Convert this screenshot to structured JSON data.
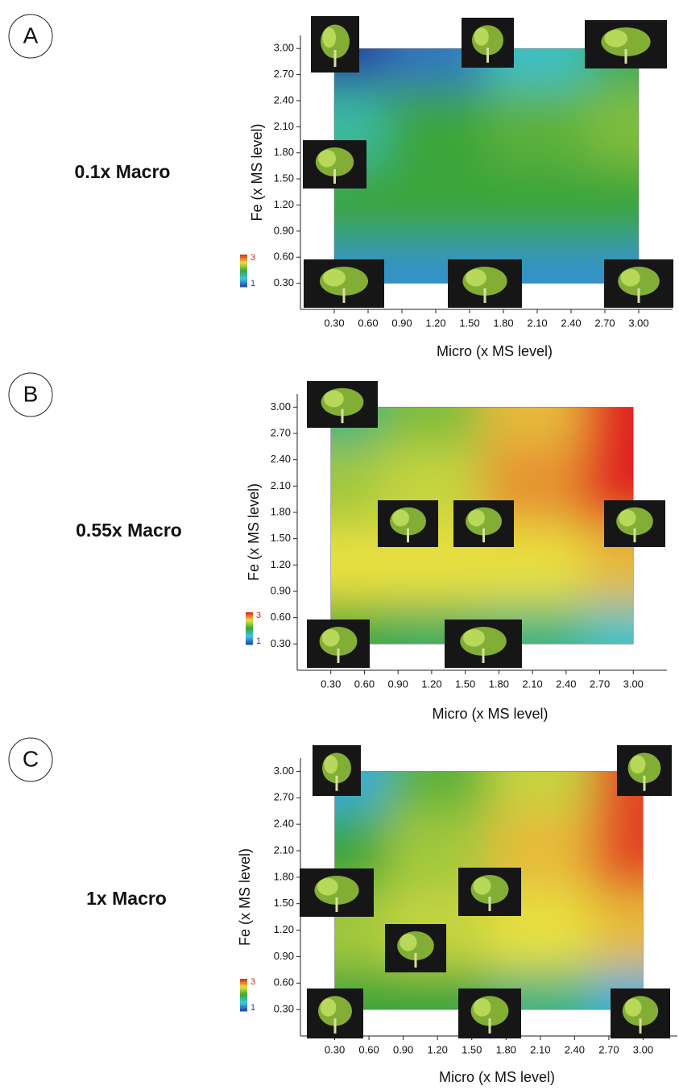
{
  "chart_data": [
    {
      "type": "heatmap",
      "panel_label": "A",
      "title": "0.1x Macro",
      "xlabel": "Micro (x MS level)",
      "ylabel": "Fe (x MS level)",
      "xlim": [
        0,
        3.3
      ],
      "ylim": [
        0,
        3.15
      ],
      "xticks": [
        {
          "value": 0.3,
          "label": "0.30"
        },
        {
          "value": 0.6,
          "label": "0.60"
        },
        {
          "value": 0.9,
          "label": "0.90"
        },
        {
          "value": 1.2,
          "label": "1.20"
        },
        {
          "value": 1.5,
          "label": "1.50"
        },
        {
          "value": 1.8,
          "label": "1.80"
        },
        {
          "value": 2.1,
          "label": "2.10"
        },
        {
          "value": 2.4,
          "label": "2.40"
        },
        {
          "value": 2.7,
          "label": "2.70"
        },
        {
          "value": 3.0,
          "label": "3.00"
        }
      ],
      "yticks": [
        {
          "value": 0.3,
          "label": "0.30"
        },
        {
          "value": 0.6,
          "label": "0.60"
        },
        {
          "value": 0.9,
          "label": "0.90"
        },
        {
          "value": 1.2,
          "label": "1.20"
        },
        {
          "value": 1.5,
          "label": "1.50"
        },
        {
          "value": 1.8,
          "label": "1.80"
        },
        {
          "value": 2.1,
          "label": "2.10"
        },
        {
          "value": 2.4,
          "label": "2.40"
        },
        {
          "value": 2.7,
          "label": "2.70"
        },
        {
          "value": 3.0,
          "label": "3.00"
        }
      ],
      "z_x": [
        0.3,
        1.2,
        2.1,
        3.0
      ],
      "z_y": [
        3.0,
        2.1,
        1.2,
        0.3
      ],
      "z": [
        [
          1.0,
          1.2,
          1.6,
          1.9
        ],
        [
          1.7,
          2.0,
          2.1,
          2.2
        ],
        [
          2.0,
          2.0,
          2.0,
          2.0
        ],
        [
          1.3,
          1.3,
          1.3,
          1.3
        ]
      ],
      "zlim": [
        1,
        3
      ],
      "colorbar_ticks": [
        1,
        3
      ]
    },
    {
      "type": "heatmap",
      "panel_label": "B",
      "title": "0.55x Macro",
      "xlabel": "Micro (x MS level)",
      "ylabel": "Fe (x MS level)",
      "xlim": [
        0,
        3.3
      ],
      "ylim": [
        0,
        3.15
      ],
      "xticks": [
        {
          "value": 0.3,
          "label": "0.30"
        },
        {
          "value": 0.6,
          "label": "0.60"
        },
        {
          "value": 0.9,
          "label": "0.90"
        },
        {
          "value": 1.2,
          "label": "1.20"
        },
        {
          "value": 1.5,
          "label": "1.50"
        },
        {
          "value": 1.8,
          "label": "1.80"
        },
        {
          "value": 2.1,
          "label": "2.10"
        },
        {
          "value": 2.4,
          "label": "2.40"
        },
        {
          "value": 2.7,
          "label": "2.70"
        },
        {
          "value": 3.0,
          "label": "3.00"
        }
      ],
      "yticks": [
        {
          "value": 0.3,
          "label": "0.30"
        },
        {
          "value": 0.6,
          "label": "0.60"
        },
        {
          "value": 0.9,
          "label": "0.90"
        },
        {
          "value": 1.2,
          "label": "1.20"
        },
        {
          "value": 1.5,
          "label": "1.50"
        },
        {
          "value": 1.8,
          "label": "1.80"
        },
        {
          "value": 2.1,
          "label": "2.10"
        },
        {
          "value": 2.4,
          "label": "2.40"
        },
        {
          "value": 2.7,
          "label": "2.70"
        },
        {
          "value": 3.0,
          "label": "3.00"
        }
      ],
      "z_x": [
        0.3,
        1.2,
        2.1,
        3.0
      ],
      "z_y": [
        3.0,
        2.1,
        1.2,
        0.3
      ],
      "z": [
        [
          1.8,
          2.2,
          2.6,
          3.0
        ],
        [
          2.3,
          2.4,
          2.7,
          3.0
        ],
        [
          2.5,
          2.5,
          2.5,
          2.6
        ],
        [
          2.0,
          1.9,
          1.8,
          1.6
        ]
      ],
      "zlim": [
        1,
        3
      ],
      "colorbar_ticks": [
        1,
        3
      ]
    },
    {
      "type": "heatmap",
      "panel_label": "C",
      "title": "1x Macro",
      "xlabel": "Micro (x MS level)",
      "ylabel": "Fe (x MS level)",
      "xlim": [
        0,
        3.3
      ],
      "ylim": [
        0,
        3.15
      ],
      "xticks": [
        {
          "value": 0.3,
          "label": "0.30"
        },
        {
          "value": 0.6,
          "label": "0.60"
        },
        {
          "value": 0.9,
          "label": "0.90"
        },
        {
          "value": 1.2,
          "label": "1.20"
        },
        {
          "value": 1.5,
          "label": "1.50"
        },
        {
          "value": 1.8,
          "label": "1.80"
        },
        {
          "value": 2.1,
          "label": "2.10"
        },
        {
          "value": 2.4,
          "label": "2.40"
        },
        {
          "value": 2.7,
          "label": "2.70"
        },
        {
          "value": 3.0,
          "label": "3.00"
        }
      ],
      "yticks": [
        {
          "value": 0.3,
          "label": "0.30"
        },
        {
          "value": 0.6,
          "label": "0.60"
        },
        {
          "value": 0.9,
          "label": "0.90"
        },
        {
          "value": 1.2,
          "label": "1.20"
        },
        {
          "value": 1.5,
          "label": "1.50"
        },
        {
          "value": 1.8,
          "label": "1.80"
        },
        {
          "value": 2.1,
          "label": "2.10"
        },
        {
          "value": 2.4,
          "label": "2.40"
        },
        {
          "value": 2.7,
          "label": "2.70"
        },
        {
          "value": 3.0,
          "label": "3.00"
        }
      ],
      "z_x": [
        0.3,
        1.2,
        2.1,
        3.0
      ],
      "z_y": [
        3.0,
        2.1,
        1.2,
        0.3
      ],
      "z": [
        [
          1.4,
          2.1,
          2.4,
          2.9
        ],
        [
          2.0,
          2.3,
          2.6,
          2.9
        ],
        [
          2.3,
          2.4,
          2.5,
          2.6
        ],
        [
          2.0,
          2.0,
          1.8,
          1.4
        ]
      ],
      "zlim": [
        1,
        3
      ],
      "colorbar_ticks": [
        1,
        3
      ]
    }
  ]
}
